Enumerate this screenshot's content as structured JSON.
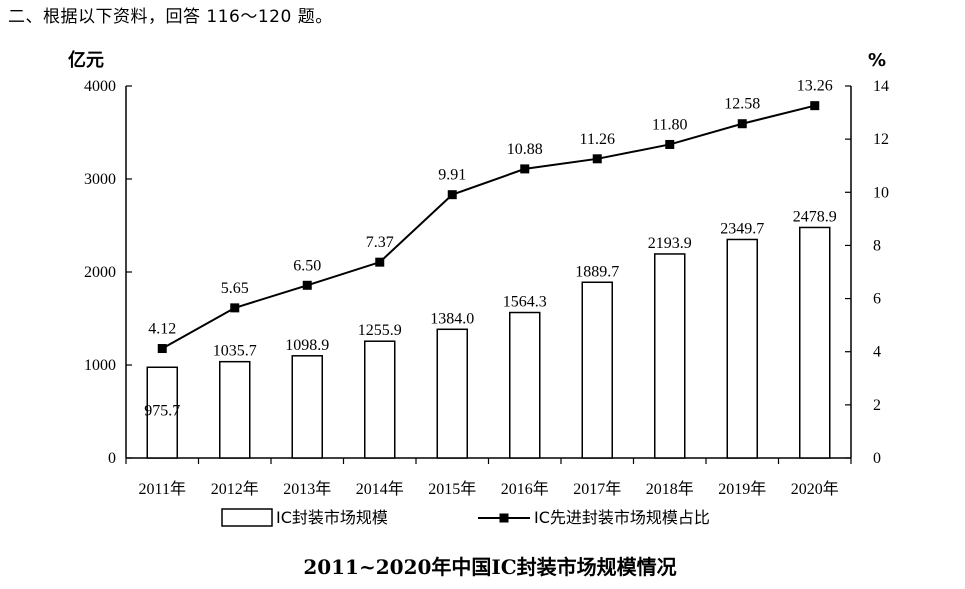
{
  "intro_text": "二、根据以下资料，回答 116～120 题。",
  "chart_data": {
    "type": "bar+line",
    "title": "2011~2020年中国IC封装市场规模情况",
    "categories": [
      "2011年",
      "2012年",
      "2013年",
      "2014年",
      "2015年",
      "2016年",
      "2017年",
      "2018年",
      "2019年",
      "2020年"
    ],
    "series": [
      {
        "name": "IC封装市场规模",
        "type": "bar",
        "axis": "left",
        "values": [
          975.7,
          1035.7,
          1098.9,
          1255.9,
          1384.0,
          1564.3,
          1889.7,
          2193.9,
          2349.7,
          2478.9
        ],
        "labels": [
          "975.7",
          "1035.7",
          "1098.9",
          "1255.9",
          "1384.0",
          "1564.3",
          "1889.7",
          "2193.9",
          "2349.7",
          "2478.9"
        ]
      },
      {
        "name": "IC先进封装市场规模占比",
        "type": "line",
        "axis": "right",
        "values": [
          4.12,
          5.65,
          6.5,
          7.37,
          9.91,
          10.88,
          11.26,
          11.8,
          12.58,
          13.26
        ],
        "labels": [
          "4.12",
          "5.65",
          "6.50",
          "7.37",
          "9.91",
          "10.88",
          "11.26",
          "11.80",
          "12.58",
          "13.26"
        ]
      }
    ],
    "y_left": {
      "unit": "亿元",
      "ylim": [
        0,
        4000
      ],
      "ticks": [
        "0",
        "1000",
        "2000",
        "3000",
        "4000"
      ]
    },
    "y_right": {
      "unit": "%",
      "ylim": [
        0,
        14
      ],
      "ticks": [
        "0",
        "2",
        "4",
        "6",
        "8",
        "10",
        "12",
        "14"
      ]
    },
    "grid": false,
    "legend_position": "bottom",
    "colors": {
      "bar_fill": "#ffffff",
      "bar_stroke": "#000000",
      "line": "#000000"
    }
  }
}
